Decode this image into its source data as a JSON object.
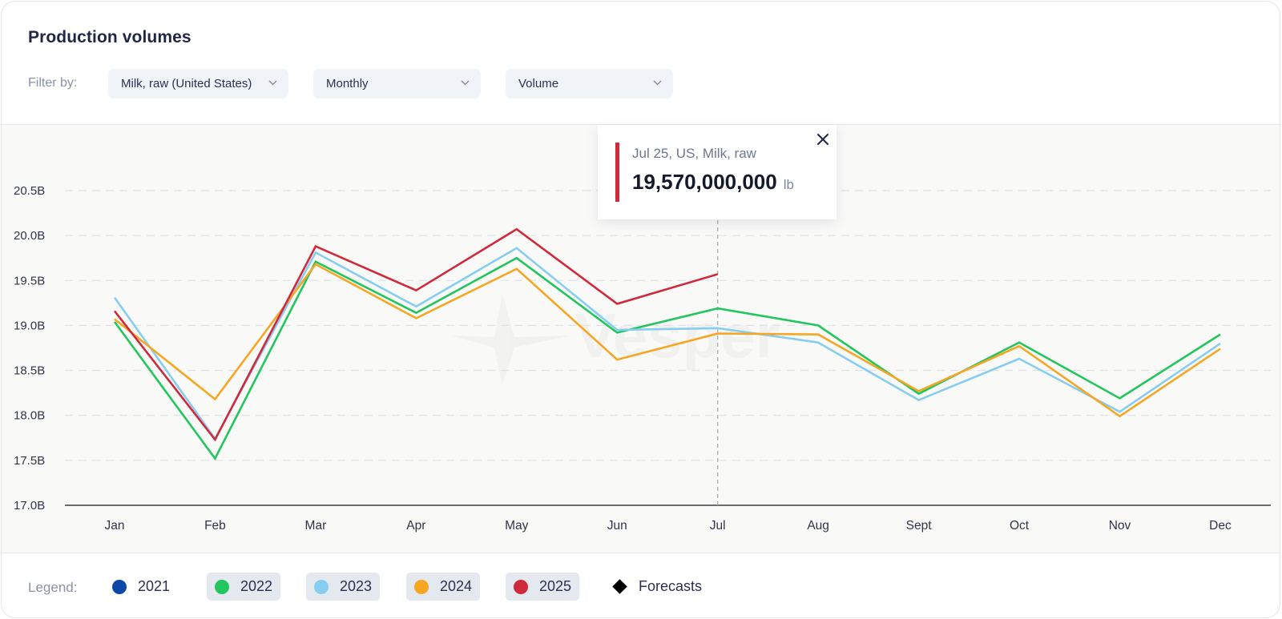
{
  "header": {
    "title": "Production volumes",
    "filter_label": "Filter by:",
    "filters": [
      {
        "name": "commodity",
        "value": "Milk, raw (United States)"
      },
      {
        "name": "frequency",
        "value": "Monthly"
      },
      {
        "name": "metric",
        "value": "Volume"
      }
    ]
  },
  "watermark": "Vesper",
  "tooltip": {
    "label": "Jul 25, US, Milk, raw",
    "value": "19,570,000,000",
    "unit": "lb",
    "accent": "#cf2a3b",
    "close_icon": "close-icon"
  },
  "legend": {
    "label": "Legend:",
    "items": [
      {
        "label": "2021",
        "color": "#0d47a8",
        "active": false,
        "icon": "circle"
      },
      {
        "label": "2022",
        "color": "#22c55e",
        "active": true,
        "icon": "circle"
      },
      {
        "label": "2023",
        "color": "#87cdf0",
        "active": true,
        "icon": "circle"
      },
      {
        "label": "2024",
        "color": "#f5a623",
        "active": true,
        "icon": "circle"
      },
      {
        "label": "2025",
        "color": "#cf2a3b",
        "active": true,
        "icon": "circle"
      },
      {
        "label": "Forecasts",
        "color": "#000000",
        "active": false,
        "icon": "diamond"
      }
    ]
  },
  "chart_data": {
    "type": "line",
    "title": "Production volumes",
    "xlabel": "",
    "ylabel": "",
    "unit": "lb",
    "categories": [
      "Jan",
      "Feb",
      "Mar",
      "Apr",
      "May",
      "Jun",
      "Jul",
      "Aug",
      "Sept",
      "Oct",
      "Nov",
      "Dec"
    ],
    "yticks": [
      "17.0B",
      "17.5B",
      "18.0B",
      "18.5B",
      "19.0B",
      "19.5B",
      "20.0B",
      "20.5B"
    ],
    "ylim": [
      17.0,
      20.7
    ],
    "y_units": "billion lb",
    "grid": true,
    "hover_category": "Jul",
    "series": [
      {
        "name": "2022",
        "color": "#22c55e",
        "values": [
          19.04,
          17.52,
          19.71,
          19.14,
          19.75,
          18.92,
          19.19,
          19.0,
          18.24,
          18.81,
          18.19,
          18.9
        ]
      },
      {
        "name": "2023",
        "color": "#87cdf0",
        "values": [
          19.31,
          17.74,
          19.81,
          19.21,
          19.86,
          18.95,
          18.97,
          18.81,
          18.17,
          18.63,
          18.04,
          18.8
        ]
      },
      {
        "name": "2024",
        "color": "#f5a623",
        "values": [
          19.07,
          18.18,
          19.68,
          19.08,
          19.63,
          18.62,
          18.91,
          18.9,
          18.27,
          18.77,
          17.99,
          18.74
        ]
      },
      {
        "name": "2025",
        "color": "#cf2a3b",
        "values": [
          19.16,
          17.73,
          19.88,
          19.39,
          20.07,
          19.24,
          19.57,
          null,
          null,
          null,
          null,
          null
        ]
      }
    ]
  }
}
